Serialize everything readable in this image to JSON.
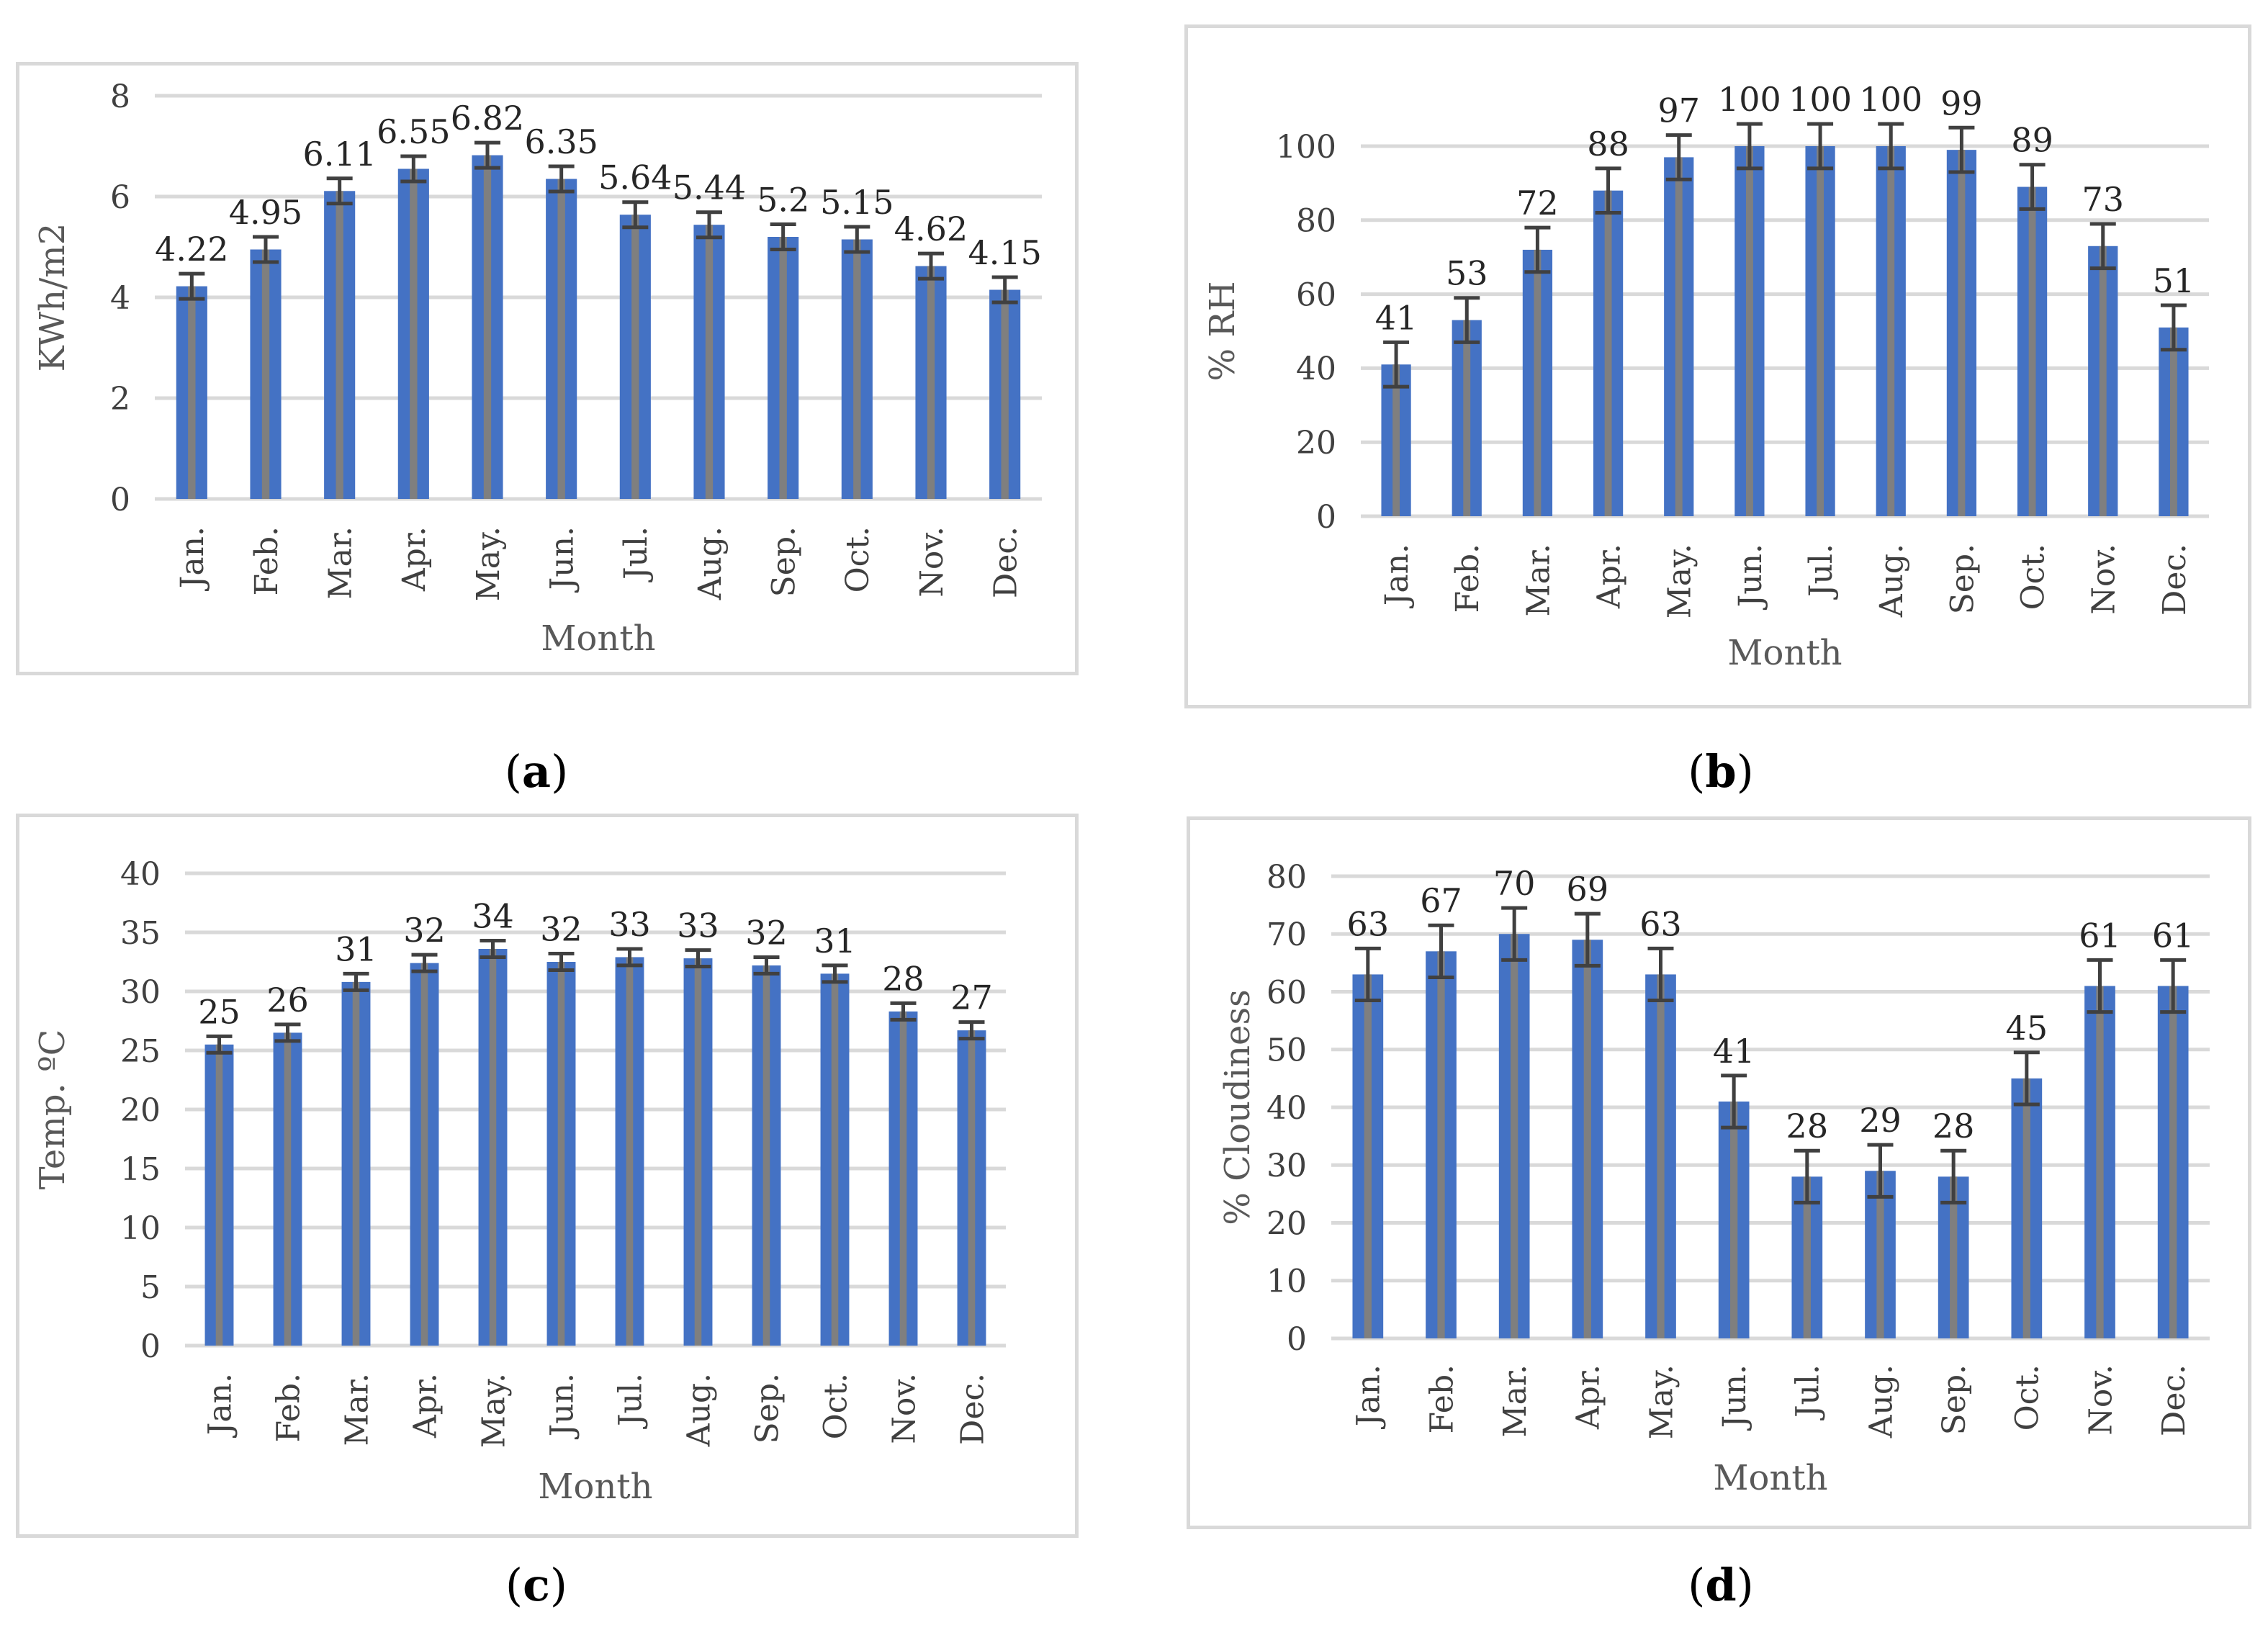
{
  "chart_data": [
    {
      "id": "a",
      "type": "bar",
      "caption_letter": "a",
      "title": "",
      "xlabel": "Month",
      "ylabel": "KWh/m2",
      "ylim": [
        0,
        8
      ],
      "yticks": [
        0,
        2,
        4,
        6,
        8
      ],
      "categories": [
        "Jan.",
        "Feb.",
        "Mar.",
        "Apr.",
        "May.",
        "Jun.",
        "Jul.",
        "Aug.",
        "Sep.",
        "Oct.",
        "Nov.",
        "Dec."
      ],
      "values": [
        4.22,
        4.95,
        6.11,
        6.55,
        6.82,
        6.35,
        5.64,
        5.44,
        5.2,
        5.15,
        4.62,
        4.15
      ],
      "labels": [
        "4.22",
        "4.95",
        "6.11",
        "6.55",
        "6.82",
        "6.35",
        "5.64",
        "5.44",
        "5.2",
        "5.15",
        "4.62",
        "4.15"
      ],
      "error": 0.25,
      "grid": true
    },
    {
      "id": "b",
      "type": "bar",
      "caption_letter": "b",
      "title": "",
      "xlabel": "Month",
      "ylabel": "% RH",
      "ylim": [
        0,
        100
      ],
      "yticks": [
        0,
        20,
        40,
        60,
        80,
        100
      ],
      "categories": [
        "Jan.",
        "Feb.",
        "Mar.",
        "Apr.",
        "May.",
        "Jun.",
        "Jul.",
        "Aug.",
        "Sep.",
        "Oct.",
        "Nov.",
        "Dec."
      ],
      "values": [
        41,
        53,
        72,
        88,
        97,
        100,
        100,
        100,
        99,
        89,
        73,
        51
      ],
      "labels": [
        "41",
        "53",
        "72",
        "88",
        "97",
        "100",
        "100",
        "100",
        "99",
        "89",
        "73",
        "51"
      ],
      "error": 6,
      "grid": true
    },
    {
      "id": "c",
      "type": "bar",
      "caption_letter": "c",
      "title": "",
      "xlabel": "Month",
      "ylabel": "Temp. ºC",
      "ylim": [
        0,
        40
      ],
      "yticks": [
        0,
        5,
        10,
        15,
        20,
        25,
        30,
        35,
        40
      ],
      "categories": [
        "Jan.",
        "Feb.",
        "Mar.",
        "Apr.",
        "May.",
        "Jun.",
        "Jul.",
        "Aug.",
        "Sep.",
        "Oct.",
        "Nov.",
        "Dec."
      ],
      "values": [
        25.5,
        26.5,
        30.8,
        32.4,
        33.6,
        32.5,
        32.9,
        32.8,
        32.2,
        31.5,
        28.3,
        26.7
      ],
      "labels": [
        "25",
        "26",
        "31",
        "32",
        "34",
        "32",
        "33",
        "33",
        "32",
        "31",
        "28",
        "27"
      ],
      "error": 0.7,
      "grid": true
    },
    {
      "id": "d",
      "type": "bar",
      "caption_letter": "d",
      "title": "",
      "xlabel": "Month",
      "ylabel": "% Cloudiness",
      "ylim": [
        0,
        80
      ],
      "yticks": [
        0,
        10,
        20,
        30,
        40,
        50,
        60,
        70,
        80
      ],
      "categories": [
        "Jan.",
        "Feb.",
        "Mar.",
        "Apr.",
        "May.",
        "Jun.",
        "Jul.",
        "Aug.",
        "Sep.",
        "Oct.",
        "Nov.",
        "Dec."
      ],
      "values": [
        63,
        67,
        70,
        69,
        63,
        41,
        28,
        29,
        28,
        45,
        61,
        61
      ],
      "labels": [
        "63",
        "67",
        "70",
        "69",
        "63",
        "41",
        "28",
        "29",
        "28",
        "45",
        "61",
        "61"
      ],
      "error": 4.5,
      "grid": true
    }
  ],
  "style": {
    "bar_color": "#4472c4",
    "bar_inner_color": "#7f7f7f",
    "error_color": "#404040",
    "grid_color": "#d9d9d9",
    "text_color": "#404040",
    "axis_label_color": "#595959"
  }
}
